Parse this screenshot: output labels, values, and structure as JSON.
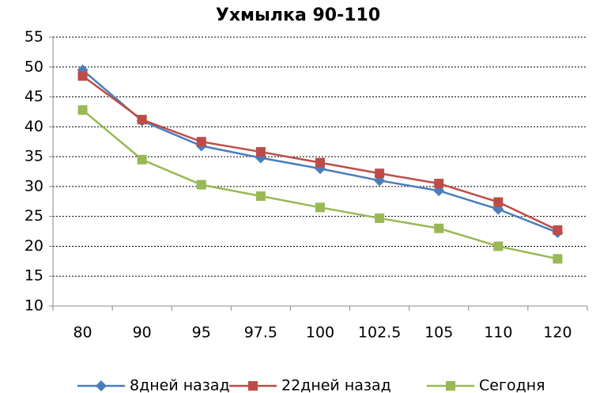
{
  "chart_data": {
    "type": "line",
    "title": "Ухмылка 90-110",
    "categories": [
      "80",
      "90",
      "95",
      "97.5",
      "100",
      "102.5",
      "105",
      "110",
      "120"
    ],
    "series": [
      {
        "name": "8дней назад",
        "color": "#4a7ebb",
        "marker": "diamond",
        "values": [
          49.5,
          41,
          36.8,
          34.8,
          33,
          31,
          29.3,
          26.2,
          22.3
        ]
      },
      {
        "name": "22дней назад",
        "color": "#be4b48",
        "marker": "square",
        "values": [
          48.5,
          41.2,
          37.5,
          35.8,
          34,
          32.2,
          30.5,
          27.4,
          22.7
        ]
      },
      {
        "name": "Сегодня",
        "color": "#98b954",
        "marker": "square",
        "values": [
          42.8,
          34.5,
          30.3,
          28.4,
          26.5,
          24.7,
          23,
          20,
          17.9
        ]
      }
    ],
    "ylim": [
      10,
      55
    ],
    "yticks": [
      10,
      15,
      20,
      25,
      30,
      35,
      40,
      45,
      50,
      55
    ],
    "grid": true,
    "legend": "bottom"
  }
}
